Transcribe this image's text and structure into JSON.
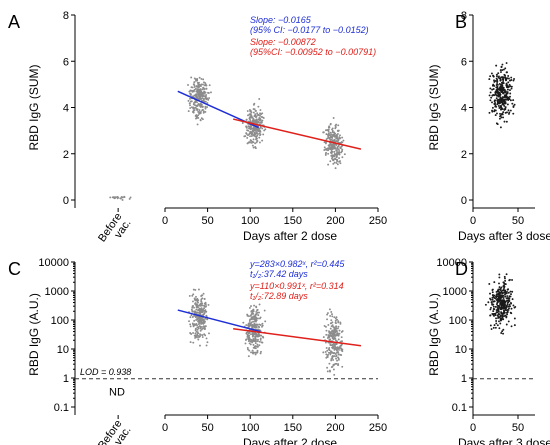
{
  "chart_data": [
    {
      "panel": "A",
      "type": "scatter",
      "ylabel": "RBD IgG (SUM)",
      "xlabel": "Days after 2 dose",
      "x_category_label": [
        "Before",
        "vac."
      ],
      "xticks": [
        0,
        50,
        100,
        150,
        200,
        250
      ],
      "yticks": [
        0,
        2,
        4,
        6,
        8
      ],
      "xlim": [
        0,
        250
      ],
      "ylim": [
        0,
        8
      ],
      "groups": [
        {
          "x": -55,
          "y_center": 0.1,
          "y_spread": 0.15,
          "n": 20
        },
        {
          "x": 40,
          "y_center": 4.4,
          "y_spread": 1.3,
          "n": 260
        },
        {
          "x": 105,
          "y_center": 3.2,
          "y_spread": 1.4,
          "n": 260
        },
        {
          "x": 198,
          "y_center": 2.4,
          "y_spread": 1.5,
          "n": 240
        }
      ],
      "fits": [
        {
          "color": "#1f2fd6",
          "x": [
            15,
            110
          ],
          "y": [
            4.7,
            3.13
          ]
        },
        {
          "color": "#e0201b",
          "x": [
            80,
            230
          ],
          "y": [
            3.5,
            2.2
          ]
        }
      ],
      "annotations": [
        {
          "color": "#1f2fd6",
          "lines": [
            "Slope: −0.0165",
            "(95% CI: −0.0177 to −0.0152)"
          ]
        },
        {
          "color": "#e0201b",
          "lines": [
            "Slope: −0.00872",
            "(95%CI: −0.00952 to −0.00791)"
          ]
        }
      ]
    },
    {
      "panel": "B",
      "type": "scatter",
      "ylabel": "RBD IgG (SUM)",
      "xlabel": "Days after 3 dose",
      "xticks": [
        0,
        50
      ],
      "yticks": [
        0,
        2,
        4,
        6,
        8
      ],
      "xlim": [
        0,
        60
      ],
      "ylim": [
        0,
        8
      ],
      "groups": [
        {
          "x": 32,
          "y_center": 4.6,
          "y_spread": 1.8,
          "n": 320
        }
      ]
    },
    {
      "panel": "C",
      "type": "scatter",
      "scale": "log",
      "ylabel": "RBD IgG (A.U.)",
      "xlabel": "Days after 2 dose",
      "x_category_label": [
        "Before",
        "vac."
      ],
      "xticks": [
        0,
        50,
        100,
        150,
        200,
        250
      ],
      "ytick_labels": [
        "0.1",
        "1",
        "10",
        "100",
        "1000",
        "10000"
      ],
      "xlim": [
        0,
        250
      ],
      "ylim": [
        0.1,
        10000
      ],
      "lod": {
        "value": 0.938,
        "label": "LOD = 0.938"
      },
      "nd_label": "ND",
      "groups": [
        {
          "x": 40,
          "y_center": 140,
          "log_spread": 1.3,
          "n": 260
        },
        {
          "x": 105,
          "y_center": 45,
          "log_spread": 1.4,
          "n": 260
        },
        {
          "x": 198,
          "y_center": 18,
          "log_spread": 1.5,
          "n": 240
        }
      ],
      "fits": [
        {
          "color": "#1f2fd6",
          "x": [
            15,
            112
          ],
          "y": [
            220,
            40
          ]
        },
        {
          "color": "#e0201b",
          "x": [
            80,
            230
          ],
          "y": [
            50,
            13
          ]
        }
      ],
      "annotations": [
        {
          "color": "#1f2fd6",
          "lines": [
            "y=283×0.982ˣ, r²=0.445",
            "t₁/₂:37.42 days"
          ]
        },
        {
          "color": "#e0201b",
          "lines": [
            "y=110×0.991ˣ, r²=0.314",
            "t₁/₂:72.89 days"
          ]
        }
      ]
    },
    {
      "panel": "D",
      "type": "scatter",
      "scale": "log",
      "ylabel": "RBD IgG (A.U.)",
      "xlabel": "Days after 3 dose",
      "xticks": [
        0,
        50
      ],
      "ytick_labels": [
        "0.1",
        "1",
        "10",
        "100",
        "1000",
        "10000"
      ],
      "xlim": [
        0,
        60
      ],
      "ylim": [
        0.1,
        10000
      ],
      "lod": {
        "value": 0.938
      },
      "groups": [
        {
          "x": 32,
          "y_center": 350,
          "log_spread": 1.3,
          "n": 320
        }
      ]
    }
  ],
  "colors": {
    "points_2dose": "#8c8c8c",
    "points_3dose": "#1a1a1a",
    "blue": "#1f2fd6",
    "red": "#e0201b"
  }
}
